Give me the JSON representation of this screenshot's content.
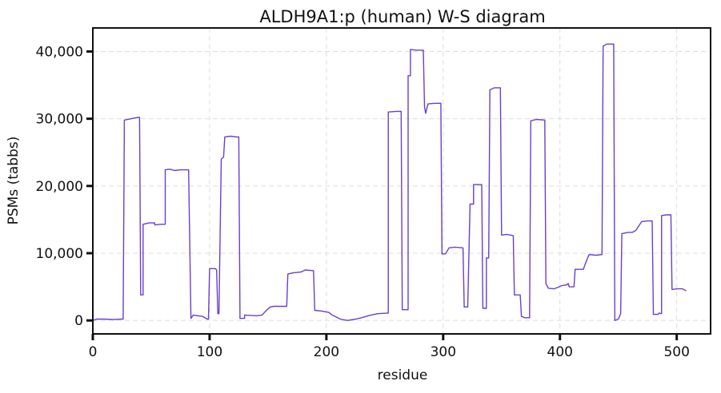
{
  "chart_data": {
    "type": "line",
    "title": "ALDH9A1:p (human) W-S diagram",
    "xlabel": "residue",
    "ylabel": "PSMs (tabbs)",
    "xlim": [
      0,
      529
    ],
    "ylim": [
      -2000,
      43500
    ],
    "xticks": [
      0,
      100,
      200,
      300,
      400,
      500
    ],
    "yticks": [
      0,
      10000,
      20000,
      30000,
      40000
    ],
    "ytick_labels": [
      "0",
      "10,000",
      "20,000",
      "30,000",
      "40,000"
    ],
    "grid": true,
    "line_color": "#6a3fd0",
    "series": [
      {
        "points": [
          [
            0,
            0
          ],
          [
            3,
            200
          ],
          [
            10,
            200
          ],
          [
            18,
            150
          ],
          [
            24,
            200
          ],
          [
            26,
            200
          ],
          [
            27,
            29800
          ],
          [
            33,
            30000
          ],
          [
            38,
            30200
          ],
          [
            40,
            30200
          ],
          [
            41,
            3800
          ],
          [
            43,
            3800
          ],
          [
            43,
            14300
          ],
          [
            48,
            14500
          ],
          [
            52,
            14500
          ],
          [
            53,
            14500
          ],
          [
            53,
            14200
          ],
          [
            58,
            14300
          ],
          [
            62,
            14300
          ],
          [
            62,
            22400
          ],
          [
            66,
            22500
          ],
          [
            70,
            22300
          ],
          [
            75,
            22400
          ],
          [
            81,
            22400
          ],
          [
            82,
            22400
          ],
          [
            84,
            300
          ],
          [
            86,
            800
          ],
          [
            90,
            700
          ],
          [
            94,
            600
          ],
          [
            98,
            200
          ],
          [
            99,
            200
          ],
          [
            100,
            7700
          ],
          [
            105,
            7700
          ],
          [
            106,
            7500
          ],
          [
            107,
            1000
          ],
          [
            108,
            1000
          ],
          [
            110,
            24000
          ],
          [
            112,
            24300
          ],
          [
            113,
            27300
          ],
          [
            118,
            27400
          ],
          [
            123,
            27300
          ],
          [
            125,
            27300
          ],
          [
            126,
            300
          ],
          [
            130,
            300
          ],
          [
            130,
            800
          ],
          [
            140,
            700
          ],
          [
            145,
            800
          ],
          [
            148,
            1400
          ],
          [
            152,
            2000
          ],
          [
            155,
            2100
          ],
          [
            160,
            2100
          ],
          [
            166,
            2100
          ],
          [
            167,
            6900
          ],
          [
            172,
            7100
          ],
          [
            178,
            7200
          ],
          [
            182,
            7500
          ],
          [
            189,
            7400
          ],
          [
            190,
            1500
          ],
          [
            196,
            1400
          ],
          [
            202,
            1200
          ],
          [
            205,
            800
          ],
          [
            212,
            200
          ],
          [
            218,
            0
          ],
          [
            225,
            200
          ],
          [
            230,
            400
          ],
          [
            238,
            800
          ],
          [
            244,
            1000
          ],
          [
            253,
            1100
          ],
          [
            253,
            31000
          ],
          [
            260,
            31100
          ],
          [
            264,
            31100
          ],
          [
            265,
            1600
          ],
          [
            270,
            1600
          ],
          [
            270,
            36400
          ],
          [
            272,
            36400
          ],
          [
            272,
            40300
          ],
          [
            277,
            40200
          ],
          [
            283,
            40200
          ],
          [
            284,
            31800
          ],
          [
            285,
            30800
          ],
          [
            287,
            32200
          ],
          [
            293,
            32300
          ],
          [
            298,
            32300
          ],
          [
            299,
            9900
          ],
          [
            302,
            9900
          ],
          [
            305,
            10800
          ],
          [
            310,
            10900
          ],
          [
            317,
            10800
          ],
          [
            318,
            2000
          ],
          [
            321,
            2000
          ],
          [
            323,
            17300
          ],
          [
            326,
            17300
          ],
          [
            326,
            20200
          ],
          [
            333,
            20200
          ],
          [
            334,
            1800
          ],
          [
            337,
            1800
          ],
          [
            337,
            9300
          ],
          [
            339,
            9300
          ],
          [
            340,
            34300
          ],
          [
            344,
            34600
          ],
          [
            349,
            34600
          ],
          [
            350,
            12700
          ],
          [
            354,
            12800
          ],
          [
            358,
            12700
          ],
          [
            360,
            12600
          ],
          [
            361,
            3800
          ],
          [
            366,
            3800
          ],
          [
            367,
            600
          ],
          [
            370,
            400
          ],
          [
            374,
            400
          ],
          [
            375,
            29700
          ],
          [
            380,
            29900
          ],
          [
            387,
            29800
          ],
          [
            388,
            5500
          ],
          [
            390,
            4800
          ],
          [
            395,
            4700
          ],
          [
            402,
            5200
          ],
          [
            406,
            5300
          ],
          [
            407,
            5500
          ],
          [
            408,
            5000
          ],
          [
            412,
            5000
          ],
          [
            413,
            7600
          ],
          [
            420,
            7600
          ],
          [
            423,
            9000
          ],
          [
            425,
            9800
          ],
          [
            431,
            9700
          ],
          [
            436,
            9800
          ],
          [
            437,
            40800
          ],
          [
            440,
            41100
          ],
          [
            446,
            41100
          ],
          [
            447,
            0
          ],
          [
            450,
            200
          ],
          [
            452,
            1000
          ],
          [
            453,
            12900
          ],
          [
            458,
            13100
          ],
          [
            462,
            13100
          ],
          [
            465,
            13400
          ],
          [
            470,
            14700
          ],
          [
            475,
            14800
          ],
          [
            479,
            14800
          ],
          [
            480,
            900
          ],
          [
            484,
            900
          ],
          [
            485,
            1100
          ],
          [
            487,
            1000
          ],
          [
            487,
            15600
          ],
          [
            491,
            15700
          ],
          [
            495,
            15700
          ],
          [
            496,
            4600
          ],
          [
            500,
            4700
          ],
          [
            505,
            4700
          ],
          [
            508,
            4400
          ]
        ]
      }
    ]
  }
}
